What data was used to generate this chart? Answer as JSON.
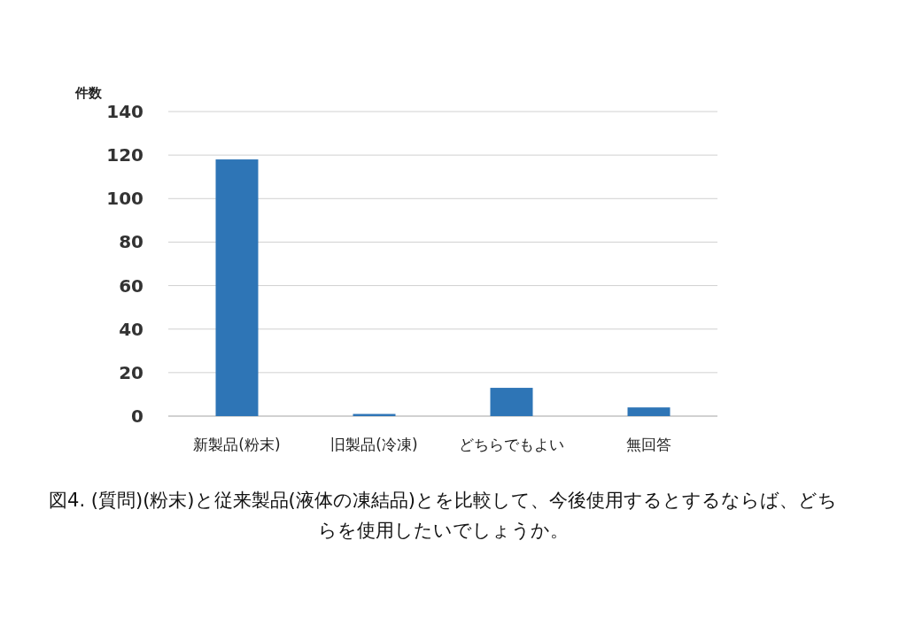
{
  "chart_data": {
    "type": "bar",
    "title": "図4. (質問)(粉末)と従来製品(液体の凍結品)とを比較して、今後使用するとするならば、どちらを使用したいでしょうか。",
    "ylabel": "件数",
    "categories": [
      "新製品(粉末)",
      "旧製品(冷凍)",
      "どちらでもよい",
      "無回答"
    ],
    "values": [
      118,
      1,
      13,
      4
    ],
    "color": "#2e75b6",
    "ylim": [
      0,
      140
    ],
    "yticks": [
      0,
      20,
      40,
      60,
      80,
      100,
      120,
      140
    ],
    "grid": "y"
  }
}
